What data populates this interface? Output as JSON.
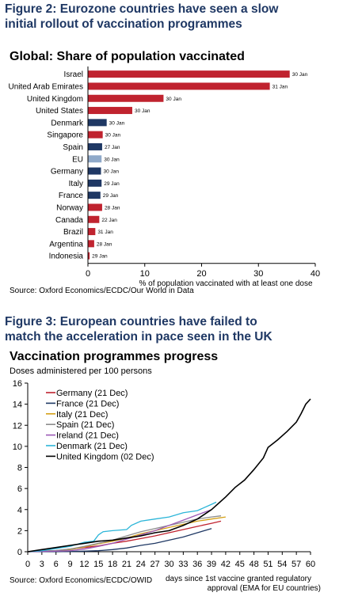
{
  "figure2": {
    "title_line1": "Figure 2: Eurozone countries have seen a slow",
    "title_line2": "initial rollout of vaccination programmes",
    "source": "Source: Oxford Economics/ECDC/Our World in Data"
  },
  "figure3": {
    "title_line1": "Figure 3: European countries have failed to",
    "title_line2": "match the acceleration in pace seen in the UK",
    "source": "Source: Oxford Economics/ECDC/OWID"
  },
  "colors": {
    "title_blue": "#1f3864",
    "red": "#c0232f",
    "navy": "#1f3864",
    "light_blue": "#8fa9c9"
  },
  "chart_data": [
    {
      "type": "bar",
      "orientation": "horizontal",
      "title": "Global: Share of population vaccinated",
      "xlabel": "% of population vaccinated with at least one dose",
      "xlim": [
        0,
        40
      ],
      "xticks": [
        0,
        10,
        20,
        30,
        40
      ],
      "grid": false,
      "categories": [
        "Israel",
        "United Arab Emirates",
        "United Kingdom",
        "United States",
        "Denmark",
        "Singapore",
        "Spain",
        "EU",
        "Germany",
        "Italy",
        "France",
        "Norway",
        "Canada",
        "Brazil",
        "Argentina",
        "Indonesia"
      ],
      "values": [
        35.5,
        32.0,
        13.3,
        7.8,
        3.3,
        2.6,
        2.5,
        2.4,
        2.3,
        2.4,
        2.2,
        2.5,
        2.0,
        1.3,
        1.1,
        0.3
      ],
      "data_labels": [
        "30 Jan",
        "31 Jan",
        "30 Jan",
        "30 Jan",
        "30 Jan",
        "30 Jan",
        "27 Jan",
        "30 Jan",
        "30 Jan",
        "29 Jan",
        "29 Jan",
        "28 Jan",
        "22 Jan",
        "31 Jan",
        "28 Jan",
        "29 Jan"
      ],
      "bar_colors": [
        "#c0232f",
        "#c0232f",
        "#c0232f",
        "#c0232f",
        "#1f3864",
        "#c0232f",
        "#1f3864",
        "#8fa9c9",
        "#1f3864",
        "#1f3864",
        "#1f3864",
        "#c0232f",
        "#c0232f",
        "#c0232f",
        "#c0232f",
        "#c0232f"
      ]
    },
    {
      "type": "line",
      "title": "Vaccination programmes progress",
      "ylabel": "Doses administered per 100 persons",
      "xlabel_line1": "days since 1st vaccine granted regulatory",
      "xlabel_line2": "approval (EMA for EU countries)",
      "xlim": [
        0,
        60
      ],
      "ylim": [
        0,
        16
      ],
      "xticks": [
        0,
        3,
        6,
        9,
        12,
        15,
        18,
        21,
        24,
        27,
        30,
        33,
        36,
        39,
        42,
        45,
        48,
        51,
        54,
        57,
        60
      ],
      "yticks": [
        0,
        2,
        4,
        6,
        8,
        10,
        12,
        14,
        16
      ],
      "grid": false,
      "legend_position": "top-left",
      "series": [
        {
          "name": "Germany (21 Dec)",
          "color": "#c0232f",
          "points": [
            [
              0,
              0
            ],
            [
              6,
              0.1
            ],
            [
              9,
              0.25
            ],
            [
              12,
              0.4
            ],
            [
              15,
              0.55
            ],
            [
              18,
              0.8
            ],
            [
              21,
              1.0
            ],
            [
              24,
              1.25
            ],
            [
              27,
              1.5
            ],
            [
              30,
              1.8
            ],
            [
              33,
              2.1
            ],
            [
              36,
              2.4
            ],
            [
              39,
              2.7
            ],
            [
              41,
              2.9
            ]
          ]
        },
        {
          "name": "France (21 Dec)",
          "color": "#1f3864",
          "points": [
            [
              0,
              0
            ],
            [
              6,
              0
            ],
            [
              9,
              0.02
            ],
            [
              12,
              0.05
            ],
            [
              15,
              0.1
            ],
            [
              18,
              0.2
            ],
            [
              21,
              0.35
            ],
            [
              24,
              0.6
            ],
            [
              27,
              0.8
            ],
            [
              30,
              1.1
            ],
            [
              33,
              1.4
            ],
            [
              36,
              1.8
            ],
            [
              39,
              2.2
            ]
          ]
        },
        {
          "name": "Italy (21 Dec)",
          "color": "#d4a017",
          "points": [
            [
              0,
              0
            ],
            [
              3,
              0.05
            ],
            [
              6,
              0.1
            ],
            [
              9,
              0.2
            ],
            [
              12,
              0.45
            ],
            [
              15,
              0.75
            ],
            [
              18,
              1.0
            ],
            [
              21,
              1.3
            ],
            [
              24,
              1.7
            ],
            [
              27,
              2.0
            ],
            [
              30,
              2.3
            ],
            [
              33,
              2.6
            ],
            [
              36,
              2.9
            ],
            [
              39,
              3.1
            ],
            [
              42,
              3.3
            ]
          ]
        },
        {
          "name": "Spain (21 Dec)",
          "color": "#8c8c8c",
          "points": [
            [
              0,
              0
            ],
            [
              3,
              0.05
            ],
            [
              6,
              0.12
            ],
            [
              9,
              0.25
            ],
            [
              12,
              0.5
            ],
            [
              15,
              0.8
            ],
            [
              18,
              1.1
            ],
            [
              21,
              1.5
            ],
            [
              24,
              1.9
            ],
            [
              27,
              2.2
            ],
            [
              30,
              2.5
            ],
            [
              33,
              2.8
            ],
            [
              36,
              3.1
            ],
            [
              39,
              3.3
            ],
            [
              41,
              3.4
            ]
          ]
        },
        {
          "name": "Ireland (21 Dec)",
          "color": "#9b59b6",
          "points": [
            [
              0,
              0
            ],
            [
              6,
              0.05
            ],
            [
              9,
              0.1
            ],
            [
              12,
              0.25
            ],
            [
              15,
              0.5
            ],
            [
              18,
              0.8
            ],
            [
              21,
              1.2
            ],
            [
              24,
              1.6
            ],
            [
              27,
              2.0
            ],
            [
              30,
              2.5
            ],
            [
              33,
              3.0
            ],
            [
              36,
              3.5
            ],
            [
              39,
              4.0
            ]
          ]
        },
        {
          "name": "Denmark (21 Dec)",
          "color": "#2bb5d8",
          "points": [
            [
              0,
              0
            ],
            [
              3,
              0.1
            ],
            [
              6,
              0.3
            ],
            [
              9,
              0.5
            ],
            [
              12,
              0.9
            ],
            [
              14,
              1.0
            ],
            [
              15,
              1.6
            ],
            [
              16,
              1.9
            ],
            [
              18,
              2.0
            ],
            [
              21,
              2.1
            ],
            [
              22,
              2.5
            ],
            [
              24,
              2.9
            ],
            [
              27,
              3.1
            ],
            [
              30,
              3.3
            ],
            [
              33,
              3.7
            ],
            [
              36,
              3.9
            ],
            [
              39,
              4.5
            ],
            [
              40,
              4.7
            ]
          ]
        },
        {
          "name": "United Kingdom (02 Dec)",
          "color": "#000000",
          "points": [
            [
              0,
              0
            ],
            [
              3,
              0.2
            ],
            [
              6,
              0.4
            ],
            [
              9,
              0.6
            ],
            [
              12,
              0.8
            ],
            [
              15,
              1.0
            ],
            [
              18,
              1.1
            ],
            [
              21,
              1.3
            ],
            [
              24,
              1.5
            ],
            [
              27,
              1.8
            ],
            [
              30,
              2.0
            ],
            [
              33,
              2.5
            ],
            [
              36,
              3.1
            ],
            [
              39,
              4.0
            ],
            [
              42,
              5.2
            ],
            [
              44,
              6.1
            ],
            [
              46,
              6.8
            ],
            [
              48,
              7.8
            ],
            [
              50,
              8.9
            ],
            [
              51,
              9.9
            ],
            [
              53,
              10.6
            ],
            [
              55,
              11.4
            ],
            [
              57,
              12.3
            ],
            [
              58,
              13.1
            ],
            [
              59,
              14.0
            ],
            [
              60,
              14.5
            ]
          ]
        }
      ]
    }
  ]
}
